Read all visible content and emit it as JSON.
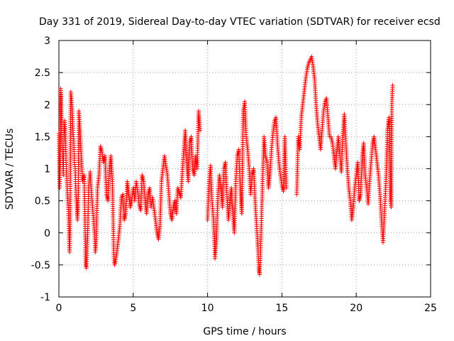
{
  "chart_data": {
    "type": "scatter",
    "title": "Day 331 of 2019, Sidereal Day-to-day VTEC variation (SDTVAR) for receiver ecsd",
    "xlabel": "GPS time / hours",
    "ylabel": "SDTVAR / TECUs",
    "xlim": [
      0,
      25
    ],
    "ylim": [
      -1,
      3
    ],
    "x_ticks": [
      0,
      5,
      10,
      15,
      20,
      25
    ],
    "x_tick_labels": [
      "0",
      "5",
      "10",
      "15",
      "20",
      "25"
    ],
    "y_ticks": [
      -1,
      -0.5,
      0,
      0.5,
      1,
      1.5,
      2,
      2.5,
      3
    ],
    "y_tick_labels": [
      "-1",
      "-0.5",
      "0",
      "0.5",
      "1",
      "1.5",
      "2",
      "2.5",
      "3"
    ],
    "grid": true,
    "marker": "+",
    "color": "#ff0000",
    "series": [
      {
        "name": "SDTVAR",
        "points": [
          [
            0.0,
            1.55
          ],
          [
            0.05,
            0.7
          ],
          [
            0.08,
            1.0
          ],
          [
            0.1,
            1.3
          ],
          [
            0.12,
            2.25
          ],
          [
            0.15,
            2.1
          ],
          [
            0.18,
            1.8
          ],
          [
            0.2,
            1.5
          ],
          [
            0.25,
            1.2
          ],
          [
            0.3,
            0.9
          ],
          [
            0.35,
            1.6
          ],
          [
            0.4,
            1.75
          ],
          [
            0.45,
            1.4
          ],
          [
            0.5,
            1.0
          ],
          [
            0.6,
            0.5
          ],
          [
            0.65,
            0.3
          ],
          [
            0.7,
            -0.2
          ],
          [
            0.72,
            -0.3
          ],
          [
            0.75,
            0.0
          ],
          [
            0.8,
            2.2
          ],
          [
            0.85,
            2.1
          ],
          [
            0.9,
            1.9
          ],
          [
            0.95,
            1.6
          ],
          [
            1.0,
            1.4
          ],
          [
            1.05,
            1.1
          ],
          [
            1.1,
            1.0
          ],
          [
            1.15,
            0.6
          ],
          [
            1.2,
            0.45
          ],
          [
            1.25,
            0.2
          ],
          [
            1.3,
            0.5
          ],
          [
            1.35,
            1.9
          ],
          [
            1.4,
            1.7
          ],
          [
            1.5,
            1.2
          ],
          [
            1.6,
            0.8
          ],
          [
            1.7,
            0.9
          ],
          [
            1.75,
            0.3
          ],
          [
            1.8,
            -0.5
          ],
          [
            1.85,
            -0.55
          ],
          [
            1.9,
            -0.25
          ],
          [
            1.95,
            0.1
          ],
          [
            2.0,
            0.7
          ],
          [
            2.1,
            0.95
          ],
          [
            2.2,
            0.6
          ],
          [
            2.3,
            0.3
          ],
          [
            2.4,
            0.0
          ],
          [
            2.45,
            -0.3
          ],
          [
            2.5,
            -0.2
          ],
          [
            2.6,
            0.7
          ],
          [
            2.7,
            0.9
          ],
          [
            2.8,
            1.35
          ],
          [
            2.9,
            1.25
          ],
          [
            3.0,
            1.1
          ],
          [
            3.1,
            1.2
          ],
          [
            3.2,
            0.6
          ],
          [
            3.3,
            0.5
          ],
          [
            3.4,
            1.0
          ],
          [
            3.5,
            1.2
          ],
          [
            3.6,
            0.8
          ],
          [
            3.7,
            -0.4
          ],
          [
            3.75,
            -0.5
          ],
          [
            3.8,
            -0.45
          ],
          [
            3.9,
            -0.3
          ],
          [
            4.0,
            -0.1
          ],
          [
            4.1,
            0.1
          ],
          [
            4.2,
            0.55
          ],
          [
            4.3,
            0.6
          ],
          [
            4.4,
            0.2
          ],
          [
            4.5,
            0.3
          ],
          [
            4.6,
            0.8
          ],
          [
            4.7,
            0.6
          ],
          [
            4.8,
            0.4
          ],
          [
            4.9,
            0.5
          ],
          [
            5.0,
            0.7
          ],
          [
            5.1,
            0.5
          ],
          [
            5.2,
            0.8
          ],
          [
            5.3,
            0.65
          ],
          [
            5.4,
            0.45
          ],
          [
            5.5,
            0.35
          ],
          [
            5.6,
            0.9
          ],
          [
            5.7,
            0.8
          ],
          [
            5.8,
            0.5
          ],
          [
            5.9,
            0.3
          ],
          [
            6.0,
            0.6
          ],
          [
            6.1,
            0.7
          ],
          [
            6.2,
            0.4
          ],
          [
            6.3,
            0.55
          ],
          [
            6.5,
            0.2
          ],
          [
            6.6,
            0.0
          ],
          [
            6.7,
            -0.1
          ],
          [
            6.8,
            0.1
          ],
          [
            6.9,
            0.8
          ],
          [
            7.0,
            1.0
          ],
          [
            7.1,
            1.2
          ],
          [
            7.2,
            1.05
          ],
          [
            7.3,
            0.9
          ],
          [
            7.4,
            0.6
          ],
          [
            7.5,
            0.3
          ],
          [
            7.6,
            0.2
          ],
          [
            7.7,
            0.4
          ],
          [
            7.8,
            0.5
          ],
          [
            7.9,
            0.3
          ],
          [
            8.0,
            0.7
          ],
          [
            8.2,
            0.55
          ],
          [
            8.4,
            1.3
          ],
          [
            8.5,
            1.6
          ],
          [
            8.6,
            1.1
          ],
          [
            8.7,
            0.8
          ],
          [
            8.8,
            1.4
          ],
          [
            8.9,
            1.5
          ],
          [
            9.0,
            1.0
          ],
          [
            9.1,
            0.9
          ],
          [
            9.2,
            1.2
          ],
          [
            9.3,
            1.0
          ],
          [
            9.4,
            1.9
          ],
          [
            9.5,
            1.6
          ],
          [
            10.0,
            0.2
          ],
          [
            10.1,
            0.8
          ],
          [
            10.2,
            1.05
          ],
          [
            10.3,
            0.5
          ],
          [
            10.4,
            0.2
          ],
          [
            10.5,
            -0.4
          ],
          [
            10.6,
            -0.1
          ],
          [
            10.7,
            0.6
          ],
          [
            10.8,
            0.9
          ],
          [
            10.9,
            0.7
          ],
          [
            11.0,
            0.4
          ],
          [
            11.1,
            1.0
          ],
          [
            11.2,
            1.1
          ],
          [
            11.3,
            0.6
          ],
          [
            11.4,
            0.2
          ],
          [
            11.5,
            0.5
          ],
          [
            11.6,
            0.7
          ],
          [
            11.7,
            0.3
          ],
          [
            11.8,
            0.0
          ],
          [
            11.9,
            0.8
          ],
          [
            12.0,
            1.2
          ],
          [
            12.1,
            1.3
          ],
          [
            12.2,
            0.7
          ],
          [
            12.3,
            0.3
          ],
          [
            12.4,
            1.9
          ],
          [
            12.5,
            2.05
          ],
          [
            12.6,
            1.5
          ],
          [
            12.7,
            1.3
          ],
          [
            12.8,
            1.0
          ],
          [
            12.9,
            0.6
          ],
          [
            13.0,
            0.9
          ],
          [
            13.1,
            1.0
          ],
          [
            13.2,
            0.5
          ],
          [
            13.3,
            0.1
          ],
          [
            13.4,
            -0.3
          ],
          [
            13.45,
            -0.6
          ],
          [
            13.5,
            -0.65
          ],
          [
            13.55,
            -0.4
          ],
          [
            13.6,
            0.0
          ],
          [
            13.7,
            0.8
          ],
          [
            13.8,
            1.5
          ],
          [
            13.9,
            1.2
          ],
          [
            14.0,
            1.1
          ],
          [
            14.1,
            0.7
          ],
          [
            14.2,
            0.9
          ],
          [
            14.3,
            1.3
          ],
          [
            14.4,
            1.55
          ],
          [
            14.5,
            1.75
          ],
          [
            14.6,
            1.8
          ],
          [
            14.7,
            1.4
          ],
          [
            14.8,
            1.1
          ],
          [
            14.9,
            0.9
          ],
          [
            15.0,
            0.75
          ],
          [
            15.1,
            0.65
          ],
          [
            15.2,
            1.5
          ],
          [
            15.3,
            0.7
          ],
          [
            16.0,
            0.6
          ],
          [
            16.1,
            1.5
          ],
          [
            16.2,
            1.3
          ],
          [
            16.3,
            1.8
          ],
          [
            16.4,
            2.0
          ],
          [
            16.5,
            2.2
          ],
          [
            16.6,
            2.4
          ],
          [
            16.7,
            2.55
          ],
          [
            16.8,
            2.65
          ],
          [
            16.9,
            2.7
          ],
          [
            17.0,
            2.75
          ],
          [
            17.1,
            2.6
          ],
          [
            17.2,
            2.4
          ],
          [
            17.3,
            2.0
          ],
          [
            17.4,
            1.7
          ],
          [
            17.5,
            1.5
          ],
          [
            17.6,
            1.3
          ],
          [
            17.7,
            1.6
          ],
          [
            17.8,
            1.9
          ],
          [
            17.9,
            2.05
          ],
          [
            18.0,
            2.1
          ],
          [
            18.1,
            1.8
          ],
          [
            18.2,
            1.5
          ],
          [
            18.3,
            1.5
          ],
          [
            18.4,
            1.4
          ],
          [
            18.5,
            1.2
          ],
          [
            18.6,
            1.0
          ],
          [
            18.7,
            1.3
          ],
          [
            18.8,
            1.5
          ],
          [
            18.9,
            1.2
          ],
          [
            19.0,
            0.95
          ],
          [
            19.1,
            1.55
          ],
          [
            19.2,
            1.85
          ],
          [
            19.3,
            1.4
          ],
          [
            19.4,
            1.0
          ],
          [
            19.5,
            0.7
          ],
          [
            19.6,
            0.5
          ],
          [
            19.7,
            0.2
          ],
          [
            19.8,
            0.4
          ],
          [
            19.9,
            0.7
          ],
          [
            20.0,
            0.9
          ],
          [
            20.1,
            1.1
          ],
          [
            20.2,
            0.5
          ],
          [
            20.3,
            0.6
          ],
          [
            20.4,
            1.2
          ],
          [
            20.5,
            1.4
          ],
          [
            20.6,
            0.9
          ],
          [
            20.7,
            0.7
          ],
          [
            20.8,
            0.45
          ],
          [
            20.9,
            0.8
          ],
          [
            21.0,
            1.1
          ],
          [
            21.1,
            1.4
          ],
          [
            21.2,
            1.5
          ],
          [
            21.3,
            1.3
          ],
          [
            21.4,
            1.1
          ],
          [
            21.5,
            0.9
          ],
          [
            21.6,
            0.6
          ],
          [
            21.7,
            0.2
          ],
          [
            21.8,
            -0.15
          ],
          [
            21.9,
            0.3
          ],
          [
            22.0,
            0.8
          ],
          [
            22.1,
            1.6
          ],
          [
            22.2,
            1.8
          ],
          [
            22.25,
            1.3
          ],
          [
            22.3,
            0.55
          ],
          [
            22.35,
            0.4
          ],
          [
            22.4,
            2.05
          ],
          [
            22.45,
            2.3
          ]
        ]
      }
    ]
  }
}
